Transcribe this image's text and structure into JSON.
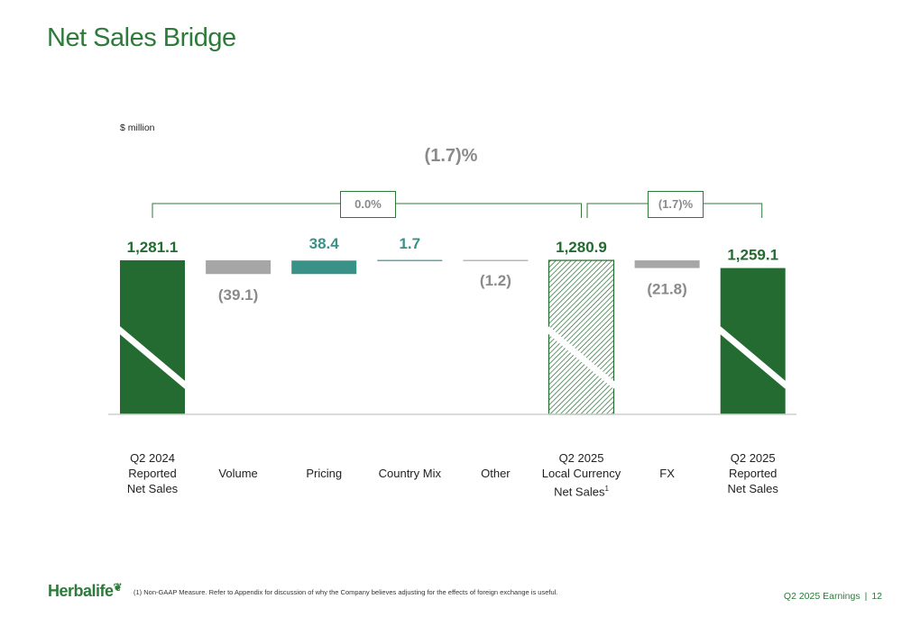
{
  "page": {
    "title": "Net Sales Bridge",
    "unit_label": "$ million",
    "footnote": "(1)  Non-GAAP Measure. Refer to Appendix for discussion of why the Company believes adjusting for the effects of foreign exchange is useful.",
    "footer_label": "Q2 2025 Earnings",
    "footer_separator": "|",
    "page_number": "12",
    "logo_text": "Herbalife"
  },
  "colors": {
    "brand_green": "#2d7a3a",
    "total_bar": "#236b30",
    "decrease": "#a6a6a6",
    "increase": "#3a9188",
    "label_gray": "#8a8a8a",
    "white": "#ffffff"
  },
  "chart_data": {
    "type": "waterfall",
    "unit": "$ million",
    "total_change_label": "(1.7)%",
    "brackets": [
      {
        "label": "0.0%",
        "from": "Q2 2024 Reported Net Sales",
        "to": "Q2 2025 Local Currency Net Sales"
      },
      {
        "label": "(1.7)%",
        "from": "Q2 2025 Local Currency Net Sales",
        "to": "Q2 2025 Reported Net Sales"
      }
    ],
    "bars": [
      {
        "category_lines": [
          "Q2 2024",
          "Reported",
          "Net Sales"
        ],
        "value": 1281.1,
        "kind": "total",
        "label": "1,281.1",
        "axis_break": true
      },
      {
        "category_lines": [
          "Volume"
        ],
        "value": -39.1,
        "kind": "decrease",
        "label": "(39.1)"
      },
      {
        "category_lines": [
          "Pricing"
        ],
        "value": 38.4,
        "kind": "increase",
        "label": "38.4"
      },
      {
        "category_lines": [
          "Country Mix"
        ],
        "value": 1.7,
        "kind": "increase",
        "label": "1.7"
      },
      {
        "category_lines": [
          "Other"
        ],
        "value": -1.2,
        "kind": "decrease",
        "label": "(1.2)"
      },
      {
        "category_lines": [
          "Q2 2025",
          "Local Currency",
          "Net Sales"
        ],
        "footnote_marker": "1",
        "value": 1280.9,
        "kind": "total_hatched",
        "label": "1,280.9",
        "axis_break": true
      },
      {
        "category_lines": [
          "FX"
        ],
        "value": -21.8,
        "kind": "decrease",
        "label": "(21.8)"
      },
      {
        "category_lines": [
          "Q2 2025",
          "Reported",
          "Net Sales"
        ],
        "value": 1259.1,
        "kind": "total",
        "label": "1,259.1",
        "axis_break": true
      }
    ]
  }
}
